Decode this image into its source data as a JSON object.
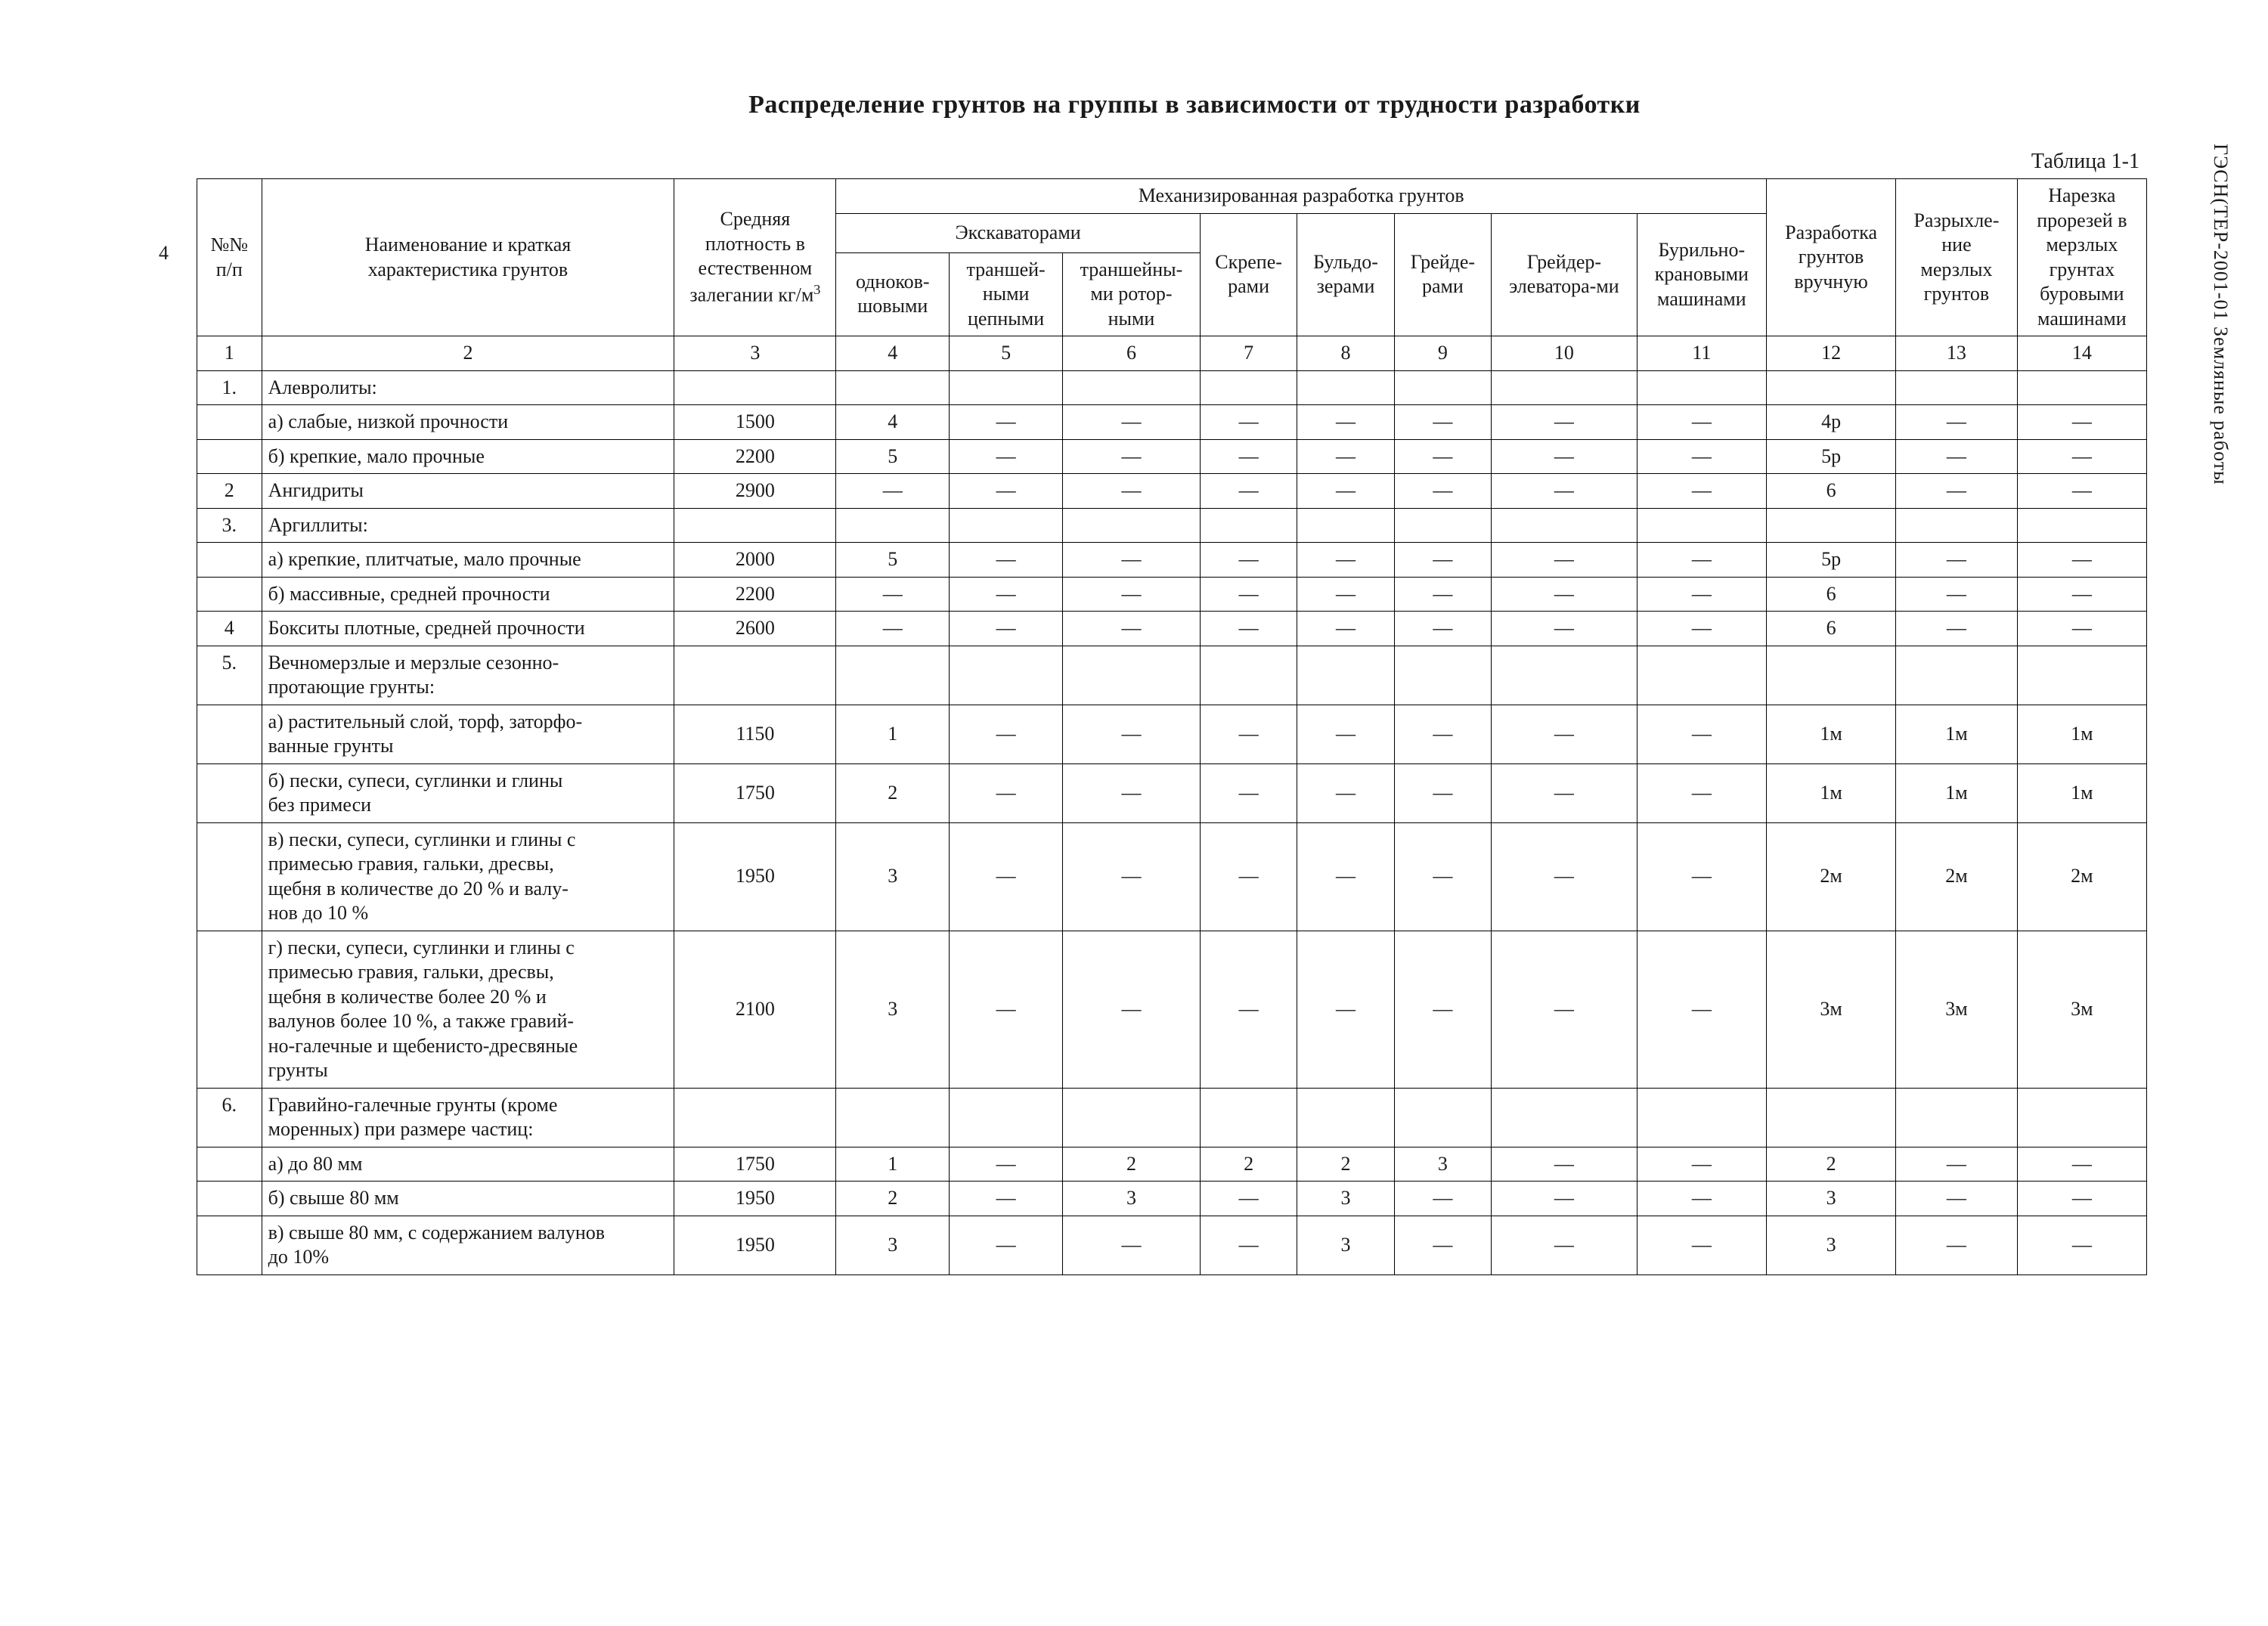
{
  "page_number_left": "4",
  "side_text": "ГЭСН(ТЕР-2001-01   Земляные работы",
  "title": "Распределение грунтов на группы в зависимости от трудности разработки",
  "table_label": "Таблица 1-1",
  "head": {
    "c1": "№№\nп/п",
    "c2": "Наименование и краткая\nхарактеристика грунтов",
    "c3_line1": "Средняя",
    "c3_line2": "плотность в",
    "c3_line3": "естественном",
    "c3_line4": "залегании кг/м",
    "c3_sup": "3",
    "mech": "Механизированная разработка грунтов",
    "exc": "Экскаваторами",
    "c4": "одноков-\nшовыми",
    "c5": "траншей-\nными\nцепными",
    "c6": "траншейны-\nми ротор-\nными",
    "c7": "Скрепе-\nрами",
    "c8": "Бульдо-\nзерами",
    "c9": "Грейде-\nрами",
    "c10": "Грейдер-\nэлеватора-ми",
    "c11": "Бурильно-\nкрановыми\nмашинами",
    "c12": "Разработка\nгрунтов\nвручную",
    "c13": "Разрыхле-\nние\nмерзлых\nгрунтов",
    "c14": "Нарезка\nпрорезей в\nмерзлых\nгрунтах\nбуровыми\nмашинами"
  },
  "colnums": [
    "1",
    "2",
    "3",
    "4",
    "5",
    "6",
    "7",
    "8",
    "9",
    "10",
    "11",
    "12",
    "13",
    "14"
  ],
  "rows": [
    {
      "n": "1.",
      "name": "Алевролиты:",
      "vals": [
        "",
        "",
        "",
        "",
        "",
        "",
        "",
        "",
        "",
        "",
        "",
        ""
      ]
    },
    {
      "n": "",
      "name": "а) слабые, низкой прочности",
      "vals": [
        "1500",
        "4",
        "—",
        "—",
        "—",
        "—",
        "—",
        "—",
        "—",
        "4р",
        "—",
        "—"
      ]
    },
    {
      "n": "",
      "name": "б) крепкие, мало прочные",
      "vals": [
        "2200",
        "5",
        "—",
        "—",
        "—",
        "—",
        "—",
        "—",
        "—",
        "5р",
        "—",
        "—"
      ]
    },
    {
      "n": "2",
      "name": "Ангидриты",
      "vals": [
        "2900",
        "—",
        "—",
        "—",
        "—",
        "—",
        "—",
        "—",
        "—",
        "6",
        "—",
        "—"
      ]
    },
    {
      "n": "3.",
      "name": "Аргиллиты:",
      "vals": [
        "",
        "",
        "",
        "",
        "",
        "",
        "",
        "",
        "",
        "",
        "",
        ""
      ]
    },
    {
      "n": "",
      "name": "а) крепкие, плитчатые, мало прочные",
      "vals": [
        "2000",
        "5",
        "—",
        "—",
        "—",
        "—",
        "—",
        "—",
        "—",
        "5р",
        "—",
        "—"
      ]
    },
    {
      "n": "",
      "name": "б) массивные, средней прочности",
      "vals": [
        "2200",
        "—",
        "—",
        "—",
        "—",
        "—",
        "—",
        "—",
        "—",
        "6",
        "—",
        "—"
      ]
    },
    {
      "n": "4",
      "name": "Бокситы плотные, средней прочности",
      "vals": [
        "2600",
        "—",
        "—",
        "—",
        "—",
        "—",
        "—",
        "—",
        "—",
        "6",
        "—",
        "—"
      ]
    },
    {
      "n": "5.",
      "name": "Вечномерзлые и мерзлые сезонно-\nпротающие грунты:",
      "vals": [
        "",
        "",
        "",
        "",
        "",
        "",
        "",
        "",
        "",
        "",
        "",
        ""
      ]
    },
    {
      "n": "",
      "name": "а) растительный слой, торф, заторфо-\nванные грунты",
      "vals": [
        "1150",
        "1",
        "—",
        "—",
        "—",
        "—",
        "—",
        "—",
        "—",
        "1м",
        "1м",
        "1м"
      ]
    },
    {
      "n": "",
      "name": "б) пески, супеси, суглинки и глины\nбез примеси",
      "vals": [
        "1750",
        "2",
        "—",
        "—",
        "—",
        "—",
        "—",
        "—",
        "—",
        "1м",
        "1м",
        "1м"
      ]
    },
    {
      "n": "",
      "name": "в) пески, супеси, суглинки и глины с\nпримесью гравия, гальки, дресвы,\nщебня в количестве до 20 % и валу-\nнов до 10 %",
      "vals": [
        "1950",
        "3",
        "—",
        "—",
        "—",
        "—",
        "—",
        "—",
        "—",
        "2м",
        "2м",
        "2м"
      ]
    },
    {
      "n": "",
      "name": "г) пески, супеси, суглинки и глины с\nпримесью гравия, гальки, дресвы,\nщебня в количестве более 20 % и\nвалунов более 10 %, а также гравий-\nно-галечные и щебенисто-дресвяные\nгрунты",
      "vals": [
        "2100",
        "3",
        "—",
        "—",
        "—",
        "—",
        "—",
        "—",
        "—",
        "3м",
        "3м",
        "3м"
      ]
    },
    {
      "n": "6.",
      "name": "Гравийно-галечные грунты (кроме\nморенных) при размере частиц:",
      "vals": [
        "",
        "",
        "",
        "",
        "",
        "",
        "",
        "",
        "",
        "",
        "",
        ""
      ]
    },
    {
      "n": "",
      "name": "а) до 80 мм",
      "vals": [
        "1750",
        "1",
        "—",
        "2",
        "2",
        "2",
        "3",
        "—",
        "—",
        "2",
        "—",
        "—"
      ]
    },
    {
      "n": "",
      "name": "б) свыше 80 мм",
      "vals": [
        "1950",
        "2",
        "—",
        "3",
        "—",
        "3",
        "—",
        "—",
        "—",
        "3",
        "—",
        "—"
      ]
    },
    {
      "n": "",
      "name": "в) свыше 80 мм, с содержанием валунов\nдо 10%",
      "vals": [
        "1950",
        "3",
        "—",
        "—",
        "—",
        "3",
        "—",
        "—",
        "—",
        "3",
        "—",
        "—"
      ]
    }
  ]
}
